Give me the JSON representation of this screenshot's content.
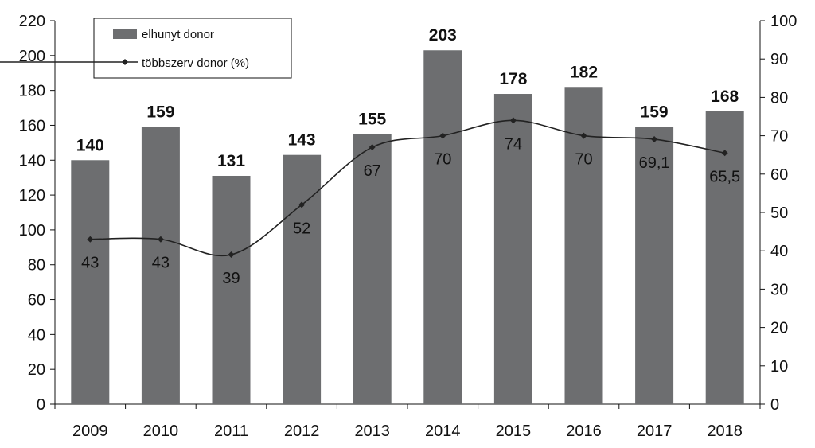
{
  "chart_data": {
    "type": "bar",
    "categories": [
      "2009",
      "2010",
      "2011",
      "2012",
      "2013",
      "2014",
      "2015",
      "2016",
      "2017",
      "2018"
    ],
    "series": [
      {
        "name": "elhunyt donor",
        "kind": "bar",
        "axis": "left",
        "values": [
          140,
          159,
          131,
          143,
          155,
          203,
          178,
          182,
          159,
          168
        ],
        "value_labels": [
          "140",
          "159",
          "131",
          "143",
          "155",
          "203",
          "178",
          "182",
          "159",
          "168"
        ],
        "color": "#6d6e70"
      },
      {
        "name": "többszerv donor (%)",
        "kind": "line",
        "axis": "right",
        "values": [
          43,
          43,
          39,
          52,
          67,
          70,
          74,
          70,
          69.1,
          65.5
        ],
        "value_labels": [
          "43",
          "43",
          "39",
          "52",
          "67",
          "70",
          "74",
          "70",
          "69,1",
          "65,5"
        ],
        "color": "#222222"
      }
    ],
    "ylim": [
      0,
      220
    ],
    "y_ticks": [
      "0",
      "20",
      "40",
      "60",
      "80",
      "100",
      "120",
      "140",
      "160",
      "180",
      "200",
      "220"
    ],
    "y2lim": [
      0,
      100
    ],
    "y2_ticks": [
      "0",
      "10",
      "20",
      "30",
      "40",
      "50",
      "60",
      "70",
      "80",
      "90",
      "100"
    ],
    "legend_position": "top-left",
    "grid": false
  }
}
